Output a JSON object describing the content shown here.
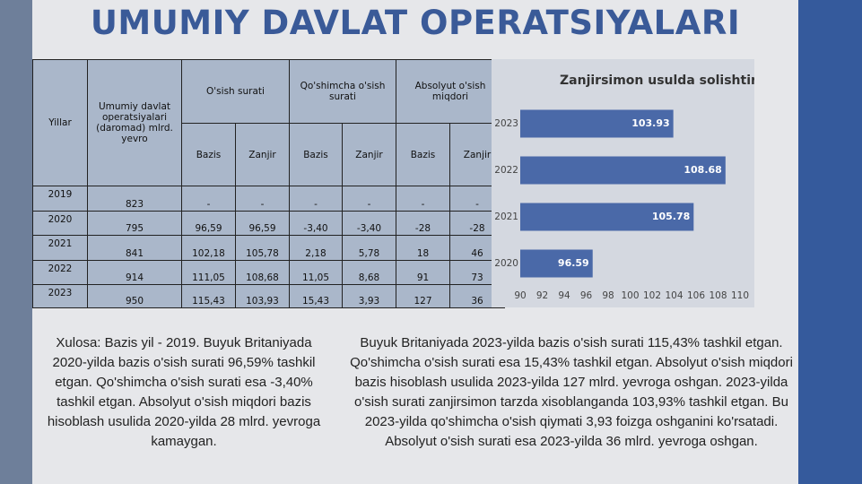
{
  "title": "UMUMIY DAVLAT OPERATSIYALARI",
  "table": {
    "header": {
      "years": "Yillar",
      "total": "Umumiy davlat operatsiyalari (daromad) mlrd. yevro",
      "groups": [
        "O'sish surati",
        "Qo'shimcha o'sish surati",
        "Absolyut o'sish miqdori"
      ],
      "sub": [
        "Bazis",
        "Zanjir",
        "Bazis",
        "Zanjir",
        "Bazis",
        "Zanjir"
      ]
    },
    "rows": [
      [
        "2019",
        "823",
        "-",
        "-",
        "-",
        "-",
        "-",
        "-"
      ],
      [
        "2020",
        "795",
        "96,59",
        "96,59",
        "-3,40",
        "-3,40",
        "-28",
        "-28"
      ],
      [
        "2021",
        "841",
        "102,18",
        "105,78",
        "2,18",
        "5,78",
        "18",
        "46"
      ],
      [
        "2022",
        "914",
        "111,05",
        "108,68",
        "11,05",
        "8,68",
        "91",
        "73"
      ],
      [
        "2023",
        "950",
        "115,43",
        "103,93",
        "15,43",
        "3,93",
        "127",
        "36"
      ]
    ]
  },
  "chart_data": {
    "type": "barh",
    "title": "Zanjirsimon usulda solishtiruv",
    "categories": [
      "2020",
      "2021",
      "2022",
      "2023"
    ],
    "values": [
      96.59,
      105.78,
      108.68,
      103.93
    ],
    "color": "#4a69a8",
    "xlim": [
      90,
      110
    ],
    "xticks": [
      90,
      92,
      94,
      96,
      98,
      100,
      102,
      104,
      106,
      108,
      110
    ]
  },
  "notes": {
    "left": "Xulosa: Bazis yil - 2019. Buyuk Britaniyada 2020-yilda bazis o'sish surati 96,59% tashkil etgan. Qo'shimcha o'sish surati esa -3,40% tashkil etgan. Absolyut o'sish miqdori bazis hisoblash usulida 2020-yilda 28 mlrd. yevroga kamaygan.",
    "right": "Buyuk Britaniyada 2023-yilda bazis o'sish surati 115,43% tashkil etgan. Qo'shimcha o'sish surati esa 15,43% tashkil etgan. Absolyut o'sish miqdori bazis hisoblash usulida 2023-yilda 127 mlrd. yevroga oshgan. 2023-yilda o'sish surati zanjirsimon tarzda xisoblanganda 103,93% tashkil etgan. Bu 2023-yilda qo'shimcha o'sish qiymati 3,93 foizga oshganini ko'rsatadi. Absolyut o'sish surati esa 2023-yilda 36 mlrd. yevroga oshgan."
  }
}
